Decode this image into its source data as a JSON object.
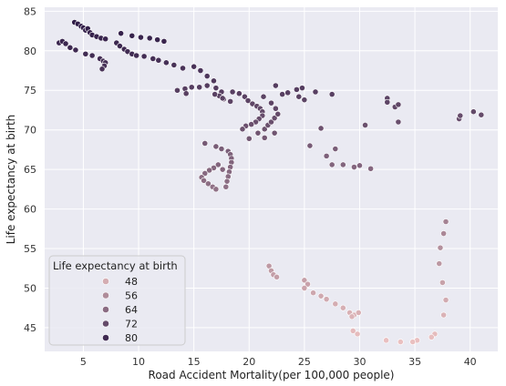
{
  "chart_data": {
    "type": "scatter",
    "title": "",
    "xlabel": "Road Accident Mortality(per 100,000 people)",
    "ylabel": "Life expectancy at birth",
    "xlim": [
      1.5,
      42.5
    ],
    "ylim": [
      42,
      85.5
    ],
    "xticks": [
      5,
      10,
      15,
      20,
      25,
      30,
      35,
      40
    ],
    "yticks": [
      45,
      50,
      55,
      60,
      65,
      70,
      75,
      80,
      85
    ],
    "grid": true,
    "background": "#eaeaf2",
    "hue": {
      "name": "Life expectancy at birth",
      "min": 43,
      "max": 84,
      "color_low": "#ebc1c1",
      "color_high": "#2d1a46"
    },
    "legend": {
      "title": "Life expectancy at birth",
      "placement": "lower-left",
      "entries": [
        {
          "label": "48",
          "value": 48
        },
        {
          "label": "56",
          "value": 56
        },
        {
          "label": "64",
          "value": 64
        },
        {
          "label": "72",
          "value": 72
        },
        {
          "label": "80",
          "value": 80
        }
      ]
    },
    "points": [
      [
        4.2,
        83.6
      ],
      [
        4.5,
        83.4
      ],
      [
        4.8,
        83.1
      ],
      [
        5.0,
        82.9
      ],
      [
        5.2,
        82.6
      ],
      [
        5.4,
        82.8
      ],
      [
        5.6,
        82.3
      ],
      [
        5.8,
        82.0
      ],
      [
        6.2,
        81.8
      ],
      [
        6.6,
        81.6
      ],
      [
        7.0,
        81.5
      ],
      [
        2.8,
        81.0
      ],
      [
        3.1,
        81.2
      ],
      [
        3.4,
        80.9
      ],
      [
        3.8,
        80.4
      ],
      [
        4.3,
        80.1
      ],
      [
        5.2,
        79.6
      ],
      [
        5.8,
        79.4
      ],
      [
        6.5,
        79.0
      ],
      [
        6.8,
        78.7
      ],
      [
        7.0,
        78.5
      ],
      [
        6.9,
        78.1
      ],
      [
        6.7,
        77.7
      ],
      [
        8.0,
        81.0
      ],
      [
        8.3,
        80.6
      ],
      [
        8.7,
        80.2
      ],
      [
        9.0,
        79.9
      ],
      [
        9.4,
        79.6
      ],
      [
        9.8,
        79.4
      ],
      [
        8.4,
        82.2
      ],
      [
        9.4,
        81.9
      ],
      [
        10.2,
        81.7
      ],
      [
        11.0,
        81.6
      ],
      [
        11.7,
        81.4
      ],
      [
        12.3,
        81.2
      ],
      [
        10.5,
        79.3
      ],
      [
        11.3,
        79.0
      ],
      [
        11.8,
        78.8
      ],
      [
        12.5,
        78.5
      ],
      [
        13.2,
        78.2
      ],
      [
        14.0,
        77.8
      ],
      [
        15.0,
        78.0
      ],
      [
        15.6,
        77.5
      ],
      [
        16.2,
        76.8
      ],
      [
        16.8,
        76.2
      ],
      [
        13.5,
        75.0
      ],
      [
        14.2,
        75.2
      ],
      [
        14.8,
        75.4
      ],
      [
        15.5,
        75.4
      ],
      [
        16.2,
        75.6
      ],
      [
        17.0,
        75.3
      ],
      [
        17.5,
        74.8
      ],
      [
        17.3,
        74.3
      ],
      [
        17.7,
        73.9
      ],
      [
        18.3,
        73.6
      ],
      [
        17.6,
        74.0
      ],
      [
        16.9,
        74.5
      ],
      [
        14.3,
        74.6
      ],
      [
        18.5,
        74.8
      ],
      [
        19.1,
        74.6
      ],
      [
        19.6,
        74.2
      ],
      [
        19.9,
        73.7
      ],
      [
        20.3,
        73.3
      ],
      [
        20.7,
        73.0
      ],
      [
        21.0,
        72.7
      ],
      [
        21.2,
        72.3
      ],
      [
        21.2,
        71.8
      ],
      [
        20.9,
        71.4
      ],
      [
        20.6,
        71.0
      ],
      [
        20.2,
        70.7
      ],
      [
        19.7,
        70.5
      ],
      [
        19.4,
        70.1
      ],
      [
        20.0,
        68.9
      ],
      [
        20.8,
        69.6
      ],
      [
        21.4,
        70.1
      ],
      [
        21.7,
        70.6
      ],
      [
        22.0,
        71.0
      ],
      [
        22.3,
        71.5
      ],
      [
        22.6,
        72.0
      ],
      [
        22.4,
        72.7
      ],
      [
        22.0,
        73.4
      ],
      [
        21.3,
        74.2
      ],
      [
        22.4,
        75.6
      ],
      [
        23.0,
        74.5
      ],
      [
        23.5,
        74.7
      ],
      [
        24.3,
        75.1
      ],
      [
        24.8,
        75.3
      ],
      [
        24.5,
        74.2
      ],
      [
        25.0,
        73.8
      ],
      [
        26.0,
        74.8
      ],
      [
        27.5,
        74.5
      ],
      [
        22.3,
        69.6
      ],
      [
        21.4,
        69.0
      ],
      [
        25.5,
        68.0
      ],
      [
        26.5,
        70.2
      ],
      [
        27.0,
        66.7
      ],
      [
        27.8,
        67.6
      ],
      [
        27.5,
        65.6
      ],
      [
        28.5,
        65.6
      ],
      [
        29.5,
        65.3
      ],
      [
        30.0,
        65.5
      ],
      [
        31.0,
        65.1
      ],
      [
        30.5,
        70.6
      ],
      [
        32.5,
        74.0
      ],
      [
        32.5,
        73.5
      ],
      [
        33.2,
        72.9
      ],
      [
        33.5,
        73.2
      ],
      [
        33.5,
        71.0
      ],
      [
        39.0,
        71.4
      ],
      [
        39.1,
        71.8
      ],
      [
        40.3,
        72.3
      ],
      [
        41.0,
        71.9
      ],
      [
        16.0,
        68.3
      ],
      [
        17.0,
        67.9
      ],
      [
        17.5,
        67.6
      ],
      [
        18.1,
        67.3
      ],
      [
        18.3,
        66.9
      ],
      [
        18.4,
        66.4
      ],
      [
        18.4,
        65.9
      ],
      [
        18.3,
        65.3
      ],
      [
        18.2,
        64.7
      ],
      [
        18.1,
        64.1
      ],
      [
        18.0,
        63.5
      ],
      [
        17.9,
        62.8
      ],
      [
        17.6,
        65.0
      ],
      [
        17.2,
        65.6
      ],
      [
        16.8,
        65.2
      ],
      [
        16.4,
        64.9
      ],
      [
        16.0,
        64.5
      ],
      [
        15.7,
        64.0
      ],
      [
        15.9,
        63.6
      ],
      [
        16.3,
        63.2
      ],
      [
        16.7,
        62.8
      ],
      [
        17.0,
        62.5
      ],
      [
        37.8,
        58.4
      ],
      [
        37.6,
        56.9
      ],
      [
        37.3,
        55.1
      ],
      [
        37.2,
        53.1
      ],
      [
        37.5,
        50.7
      ],
      [
        37.8,
        48.5
      ],
      [
        37.6,
        46.6
      ],
      [
        36.8,
        44.2
      ],
      [
        36.5,
        43.8
      ],
      [
        35.2,
        43.4
      ],
      [
        34.8,
        43.2
      ],
      [
        33.7,
        43.2
      ],
      [
        32.4,
        43.4
      ],
      [
        29.8,
        44.2
      ],
      [
        29.4,
        44.6
      ],
      [
        21.8,
        52.8
      ],
      [
        22.0,
        52.2
      ],
      [
        22.2,
        51.7
      ],
      [
        22.5,
        51.4
      ],
      [
        25.0,
        51.0
      ],
      [
        25.3,
        50.5
      ],
      [
        25.0,
        50.0
      ],
      [
        25.8,
        49.4
      ],
      [
        26.5,
        49.0
      ],
      [
        27.0,
        48.6
      ],
      [
        27.8,
        48.0
      ],
      [
        28.5,
        47.5
      ],
      [
        29.1,
        46.9
      ],
      [
        29.5,
        46.6
      ],
      [
        29.9,
        46.9
      ],
      [
        29.3,
        46.4
      ]
    ]
  }
}
